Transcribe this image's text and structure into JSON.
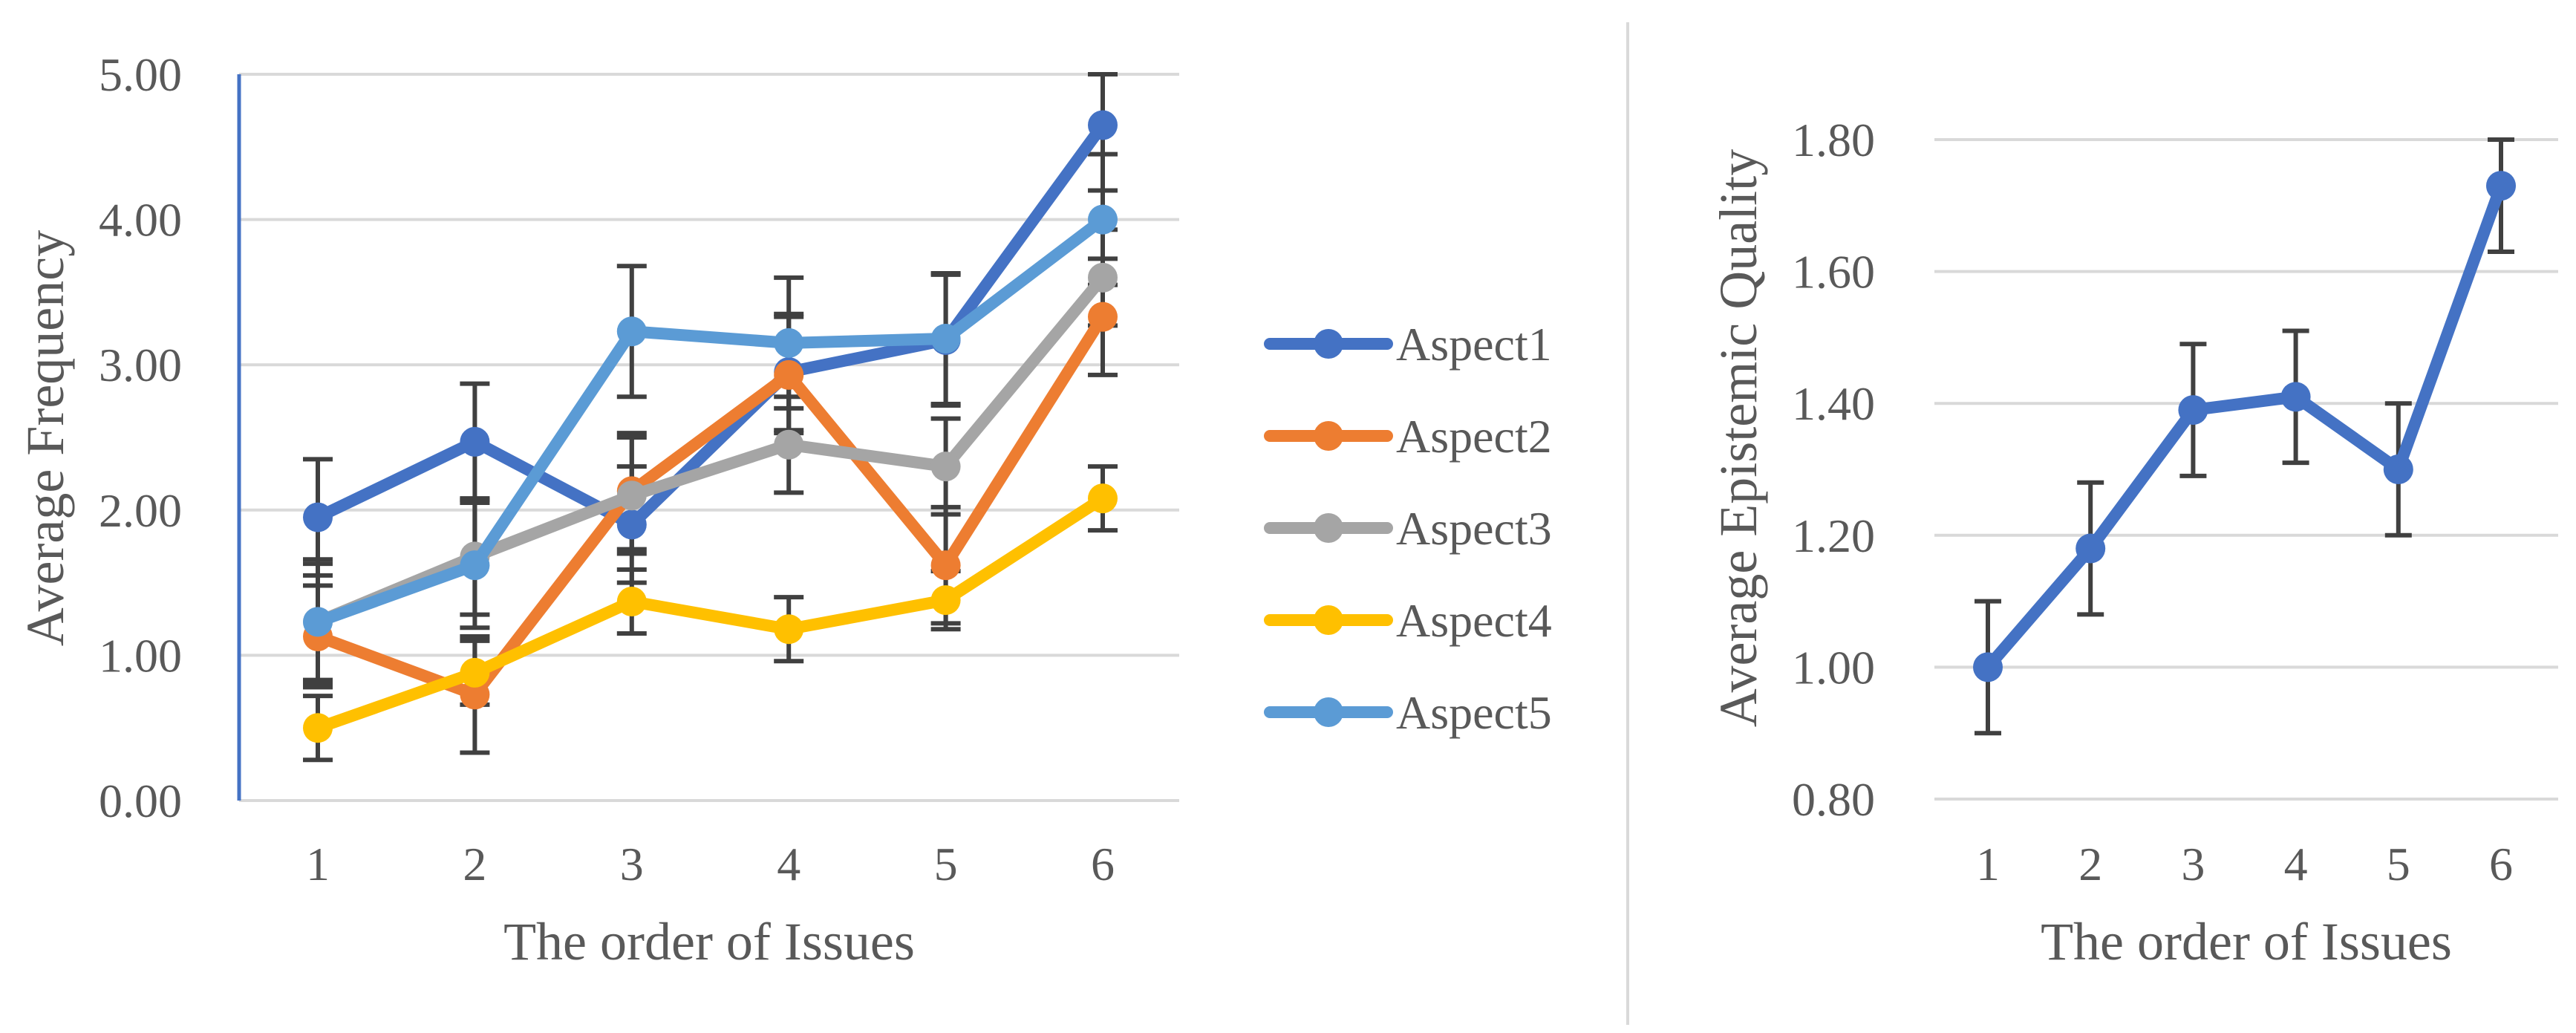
{
  "chart_data": [
    {
      "type": "line",
      "title": "",
      "xlabel": "The order of Issues",
      "ylabel": "Average Frequency",
      "categories": [
        "1",
        "2",
        "3",
        "4",
        "5",
        "6"
      ],
      "ylim": [
        0,
        5
      ],
      "yticks": [
        "0.00",
        "1.00",
        "2.00",
        "3.00",
        "4.00",
        "5.00"
      ],
      "ytick_values": [
        0,
        1,
        2,
        3,
        4,
        5
      ],
      "grid": true,
      "legend_position": "right",
      "series": [
        {
          "name": "Aspect1",
          "color": "#4472c4",
          "values": [
            1.95,
            2.47,
            1.9,
            2.95,
            3.17,
            4.65
          ],
          "errors": [
            0.4,
            0.4,
            0.4,
            0.4,
            0.45,
            0.45
          ]
        },
        {
          "name": "Aspect2",
          "color": "#ed7d31",
          "values": [
            1.13,
            0.73,
            2.13,
            2.93,
            1.62,
            3.33
          ],
          "errors": [
            0.35,
            0.4,
            0.4,
            0.4,
            0.4,
            0.4
          ]
        },
        {
          "name": "Aspect3",
          "color": "#a5a5a5",
          "values": [
            1.23,
            1.68,
            2.1,
            2.45,
            2.3,
            3.6
          ],
          "errors": [
            0.4,
            0.4,
            0.4,
            0.33,
            0.33,
            0.33
          ]
        },
        {
          "name": "Aspect4",
          "color": "#ffc000",
          "values": [
            0.5,
            0.88,
            1.37,
            1.18,
            1.38,
            2.08
          ],
          "errors": [
            0.22,
            0.22,
            0.22,
            0.22,
            0.2,
            0.22
          ]
        },
        {
          "name": "Aspect5",
          "color": "#5b9bd5",
          "values": [
            1.23,
            1.62,
            3.23,
            3.15,
            3.18,
            4.0
          ],
          "errors": [
            0.43,
            0.43,
            0.45,
            0.45,
            0.45,
            0.45
          ]
        }
      ]
    },
    {
      "type": "line",
      "title": "",
      "xlabel": "The order of Issues",
      "ylabel": "Average Epistemic Quality",
      "categories": [
        "1",
        "2",
        "3",
        "4",
        "5",
        "6"
      ],
      "ylim": [
        0.8,
        1.8
      ],
      "yticks": [
        "0.80",
        "1.00",
        "1.20",
        "1.40",
        "1.60",
        "1.80"
      ],
      "ytick_values": [
        0.8,
        1.0,
        1.2,
        1.4,
        1.6,
        1.8
      ],
      "grid": true,
      "series": [
        {
          "name": "Epistemic Quality",
          "color": "#4472c4",
          "values": [
            1.0,
            1.18,
            1.39,
            1.41,
            1.3,
            1.73
          ],
          "errors": [
            0.1,
            0.1,
            0.1,
            0.1,
            0.1,
            0.1
          ]
        }
      ]
    }
  ]
}
